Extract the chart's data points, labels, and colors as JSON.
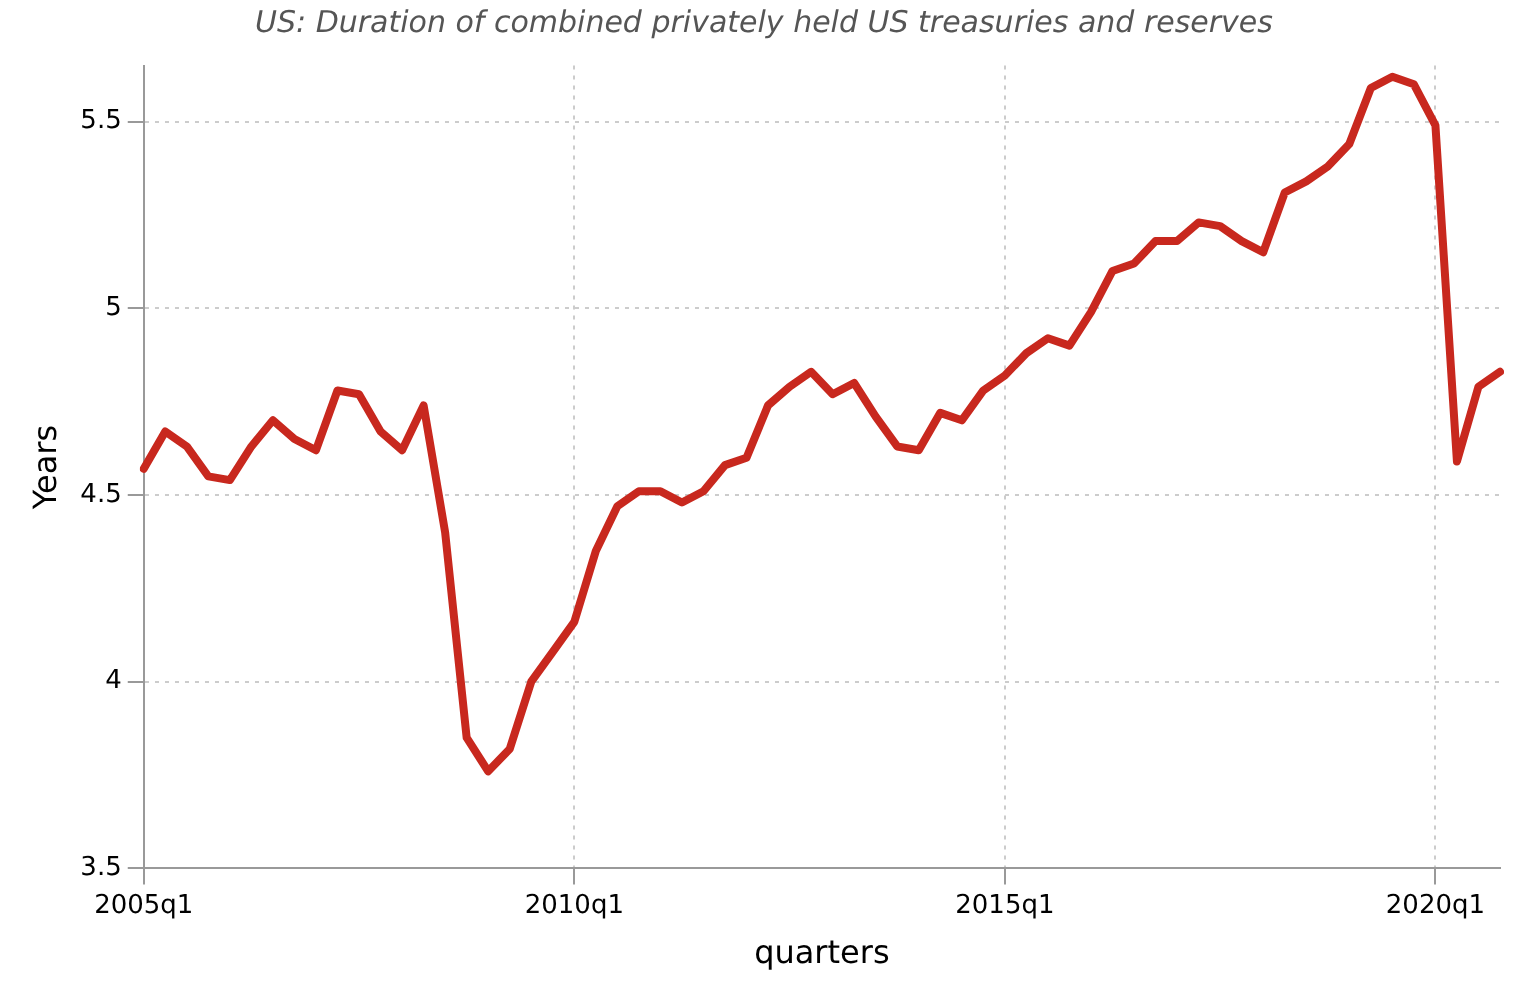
{
  "chart_data": {
    "type": "line",
    "title": "US: Duration of combined privately held US treasuries and reserves",
    "xlabel": "quarters",
    "ylabel": "Years",
    "categories": [
      "2005q1",
      null,
      null,
      null,
      null,
      null,
      null,
      null,
      null,
      null,
      null,
      null,
      null,
      null,
      null,
      null,
      null,
      null,
      null,
      null,
      "2010q1",
      null,
      null,
      null,
      null,
      null,
      null,
      null,
      null,
      null,
      null,
      null,
      null,
      null,
      null,
      null,
      null,
      null,
      null,
      null,
      "2015q1",
      null,
      null,
      null,
      null,
      null,
      null,
      null,
      null,
      null,
      null,
      null,
      null,
      null,
      null,
      null,
      null,
      null,
      null,
      null,
      "2020q1",
      null,
      null,
      null
    ],
    "series": [
      {
        "color": "#c8281e",
        "values": [
          4.57,
          4.67,
          4.63,
          4.55,
          4.54,
          4.63,
          4.7,
          4.65,
          4.62,
          4.78,
          4.77,
          4.67,
          4.62,
          4.74,
          4.4,
          3.85,
          3.76,
          3.82,
          4.0,
          4.08,
          4.16,
          4.35,
          4.47,
          4.51,
          4.51,
          4.48,
          4.51,
          4.58,
          4.6,
          4.74,
          4.79,
          4.83,
          4.77,
          4.8,
          4.71,
          4.63,
          4.62,
          4.72,
          4.7,
          4.78,
          4.82,
          4.88,
          4.92,
          4.9,
          4.99,
          5.1,
          5.12,
          5.18,
          5.18,
          5.23,
          5.22,
          5.18,
          5.15,
          5.31,
          5.34,
          5.38,
          5.44,
          5.59,
          5.62,
          5.6,
          5.49,
          4.59,
          4.79,
          4.83
        ]
      }
    ],
    "ylim": [
      3.5,
      5.65
    ],
    "yticks": [
      3.5,
      4,
      4.5,
      5,
      5.5
    ],
    "grid": true,
    "marker": "none",
    "line_style": "solid"
  }
}
